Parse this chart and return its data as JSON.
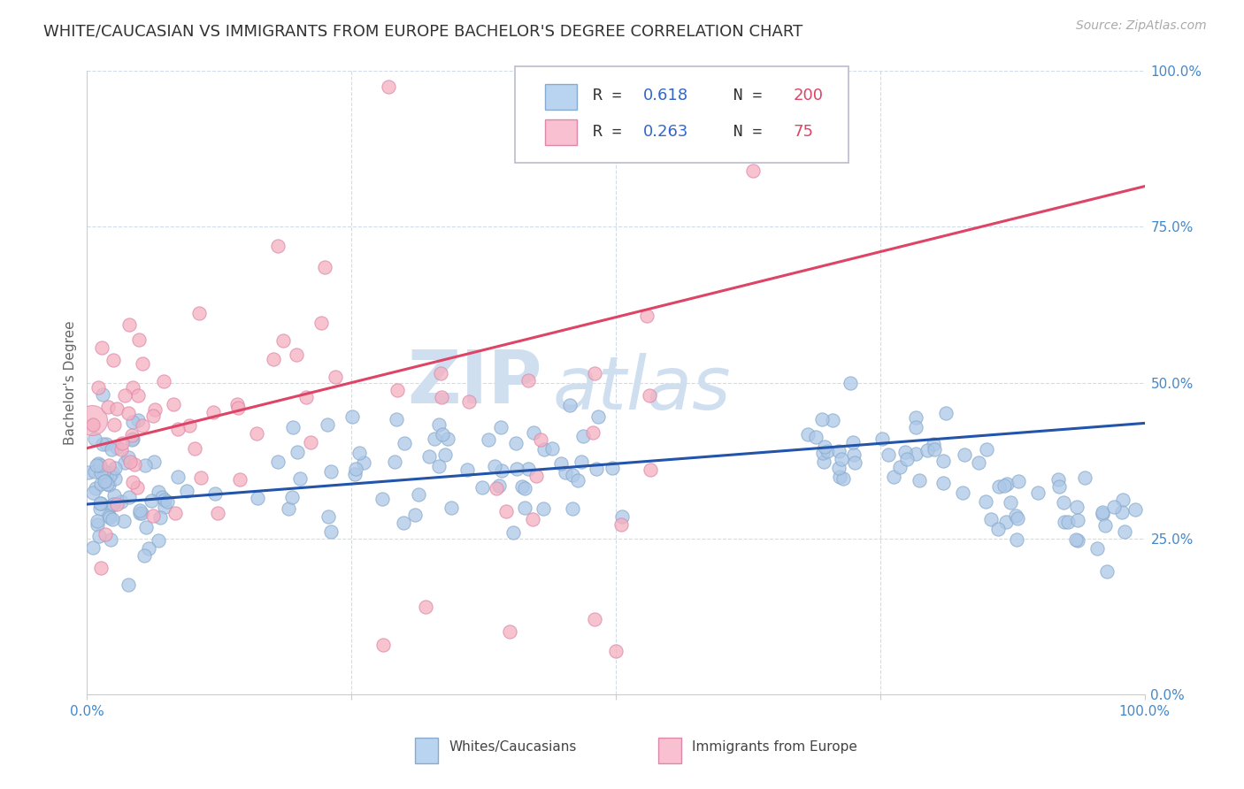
{
  "title": "WHITE/CAUCASIAN VS IMMIGRANTS FROM EUROPE BACHELOR'S DEGREE CORRELATION CHART",
  "source": "Source: ZipAtlas.com",
  "ylabel": "Bachelor's Degree",
  "ytick_labels": [
    "0.0%",
    "25.0%",
    "50.0%",
    "75.0%",
    "100.0%"
  ],
  "ytick_values": [
    0.0,
    0.25,
    0.5,
    0.75,
    1.0
  ],
  "blue_R": 0.618,
  "blue_N": 200,
  "pink_R": 0.263,
  "pink_N": 75,
  "blue_color": "#adc8e8",
  "pink_color": "#f5afc0",
  "blue_line_color": "#2255aa",
  "pink_line_color": "#dd4466",
  "blue_edge_color": "#88aacc",
  "pink_edge_color": "#dd88aa",
  "legend_blue_face": "#b8d4f0",
  "legend_pink_face": "#f8c0d0",
  "watermark_zip": "ZIP",
  "watermark_atlas": "atlas",
  "watermark_color": "#d0dff0",
  "title_fontsize": 13,
  "source_fontsize": 10,
  "ylabel_fontsize": 11,
  "legend_fontsize": 13,
  "watermark_fontsize": 60,
  "background_color": "#ffffff",
  "grid_color": "#d0dde8",
  "blue_slope": 0.13,
  "blue_intercept": 0.305,
  "pink_slope": 0.42,
  "pink_intercept": 0.395,
  "marker_size": 120,
  "blue_alpha": 0.75,
  "pink_alpha": 0.75
}
